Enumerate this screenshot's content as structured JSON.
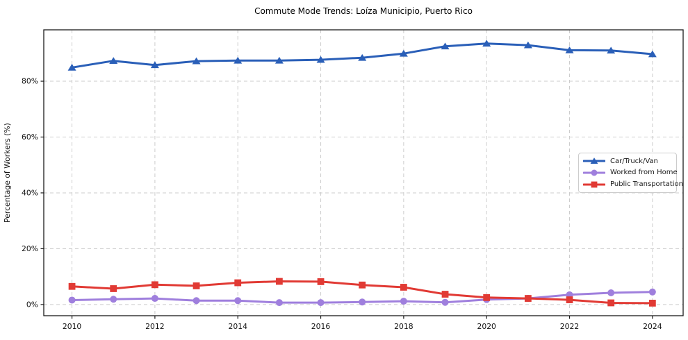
{
  "chart_data": {
    "type": "line",
    "title": "Commute Mode Trends: Loíza Municipio, Puerto Rico",
    "xlabel": "",
    "ylabel": "Percentage of Workers (%)",
    "x": [
      2010,
      2011,
      2012,
      2013,
      2014,
      2015,
      2016,
      2017,
      2018,
      2019,
      2020,
      2021,
      2022,
      2023,
      2024
    ],
    "series": [
      {
        "name": "Car/Truck/Van",
        "color": "#2a5fb8",
        "marker": "triangle",
        "values": [
          84.9,
          87.3,
          85.8,
          87.2,
          87.4,
          87.4,
          87.7,
          88.4,
          89.9,
          92.5,
          93.5,
          92.9,
          91.1,
          91.0,
          89.7
        ]
      },
      {
        "name": "Worked from Home",
        "color": "#9f7fdd",
        "marker": "circle",
        "values": [
          1.6,
          1.9,
          2.2,
          1.4,
          1.4,
          0.7,
          0.7,
          0.9,
          1.2,
          0.8,
          1.8,
          2.2,
          3.5,
          4.2,
          4.5
        ]
      },
      {
        "name": "Public Transportation",
        "color": "#e13a34",
        "marker": "square",
        "values": [
          6.5,
          5.7,
          7.1,
          6.7,
          7.8,
          8.3,
          8.2,
          7.0,
          6.2,
          3.7,
          2.5,
          2.2,
          1.7,
          0.6,
          0.5
        ]
      }
    ],
    "xticks": {
      "values": [
        2010,
        2012,
        2014,
        2016,
        2018,
        2020,
        2022,
        2024
      ],
      "labels": [
        "2010",
        "2012",
        "2014",
        "2016",
        "2018",
        "2020",
        "2022",
        "2024"
      ]
    },
    "yticks": {
      "values": [
        0,
        20,
        40,
        60,
        80
      ],
      "labels": [
        "0%",
        "20%",
        "40%",
        "60%",
        "80%"
      ]
    },
    "xlim": [
      2009.32,
      2024.74
    ],
    "ylim": [
      -4.0,
      98.4
    ],
    "grid": true,
    "legend_position": "center right"
  }
}
